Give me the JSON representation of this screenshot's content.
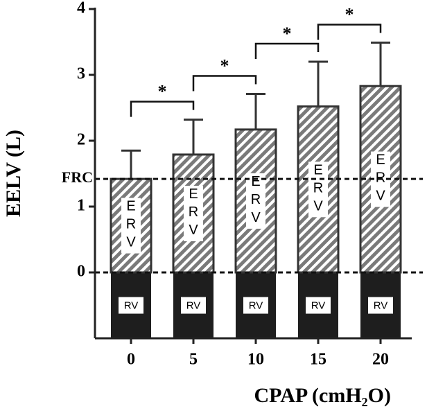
{
  "chart_data": {
    "type": "bar",
    "x_label": "CPAP (cmH₂O)",
    "y_label": "EELV (L)",
    "categories": [
      "0",
      "5",
      "10",
      "15",
      "20"
    ],
    "series": [
      {
        "name": "ERV",
        "color": "#7a7a7a",
        "values": [
          1.42,
          1.79,
          2.17,
          2.52,
          2.83
        ],
        "errors": [
          0.43,
          0.53,
          0.54,
          0.68,
          0.66
        ]
      }
    ],
    "lower_segment_label": "RV",
    "lower_segment_color": "#1e1e1e",
    "ylim": [
      -1,
      4
    ],
    "yticks": [
      0,
      1,
      2,
      3,
      4
    ],
    "reference_lines": [
      {
        "value": 0
      },
      {
        "value": 1.42,
        "label": "FRC"
      }
    ],
    "significance": [
      {
        "between": [
          "0",
          "5"
        ],
        "label": "*"
      },
      {
        "between": [
          "5",
          "10"
        ],
        "label": "*"
      },
      {
        "between": [
          "10",
          "15"
        ],
        "label": "*"
      },
      {
        "between": [
          "15",
          "20"
        ],
        "label": "*"
      }
    ]
  }
}
